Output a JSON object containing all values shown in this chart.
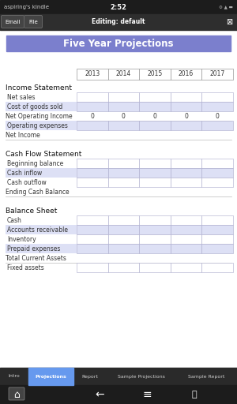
{
  "title": "Five Year Projections",
  "title_bg": "#7b7fcd",
  "title_color": "white",
  "years": [
    "2013",
    "2014",
    "2015",
    "2016",
    "2017"
  ],
  "status_bar_bg": "#1c1c1c",
  "status_bar_text": "aspiring's kindle",
  "status_time": "2:52",
  "toolbar_bg": "#2e2e2e",
  "toolbar_text": "Editing: default",
  "tab_bar_bg": "#2a2a2a",
  "tabs": [
    "Intro",
    "Projections",
    "Report",
    "Sample Projections",
    "Sample Report"
  ],
  "active_tab": "Projections",
  "active_tab_color": "#6699ee",
  "nav_bar_bg": "#1c1c1c",
  "content_bg": "#ffffff",
  "cell_bg_white": "#ffffff",
  "cell_bg_blue": "#dde0f5",
  "cell_border": "#aaaacc",
  "year_cell_border": "#999999",
  "section_header_color": "#111111",
  "row_label_color": "#333333",
  "sections": [
    {
      "header": "Income Statement",
      "rows": [
        {
          "label": "Net sales",
          "shaded": false,
          "values": [
            "",
            "",
            "",
            "",
            ""
          ]
        },
        {
          "label": "Cost of goods sold",
          "shaded": true,
          "values": [
            "",
            "",
            "",
            "",
            ""
          ]
        },
        {
          "label": "Net Operating Income",
          "shaded": false,
          "values": [
            "0",
            "0",
            "0",
            "0",
            "0"
          ],
          "no_cells": true
        },
        {
          "label": "Operating expenses",
          "shaded": true,
          "values": [
            "",
            "",
            "",
            "",
            ""
          ]
        },
        {
          "label": "Net Income",
          "shaded": false,
          "values": null
        }
      ]
    },
    {
      "header": "Cash Flow Statement",
      "rows": [
        {
          "label": "Beginning balance",
          "shaded": false,
          "values": [
            "",
            "",
            "",
            "",
            ""
          ]
        },
        {
          "label": "Cash inflow",
          "shaded": true,
          "values": [
            "",
            "",
            "",
            "",
            ""
          ]
        },
        {
          "label": "Cash outflow",
          "shaded": false,
          "values": [
            "",
            "",
            "",
            "",
            ""
          ]
        },
        {
          "label": "Ending Cash Balance",
          "shaded": true,
          "values": null,
          "full_width": true
        }
      ]
    },
    {
      "header": "Balance Sheet",
      "rows": [
        {
          "label": "Cash",
          "shaded": false,
          "values": [
            "",
            "",
            "",
            "",
            ""
          ]
        },
        {
          "label": "Accounts receivable",
          "shaded": true,
          "values": [
            "",
            "",
            "",
            "",
            ""
          ]
        },
        {
          "label": "Inventory",
          "shaded": false,
          "values": [
            "",
            "",
            "",
            "",
            ""
          ]
        },
        {
          "label": "Prepaid expenses",
          "shaded": true,
          "values": [
            "",
            "",
            "",
            "",
            ""
          ]
        },
        {
          "label": "Total Current Assets",
          "shaded": false,
          "values": null
        },
        {
          "label": "Fixed assets",
          "shaded": false,
          "values": [
            "",
            "",
            "",
            "",
            ""
          ]
        }
      ]
    }
  ]
}
